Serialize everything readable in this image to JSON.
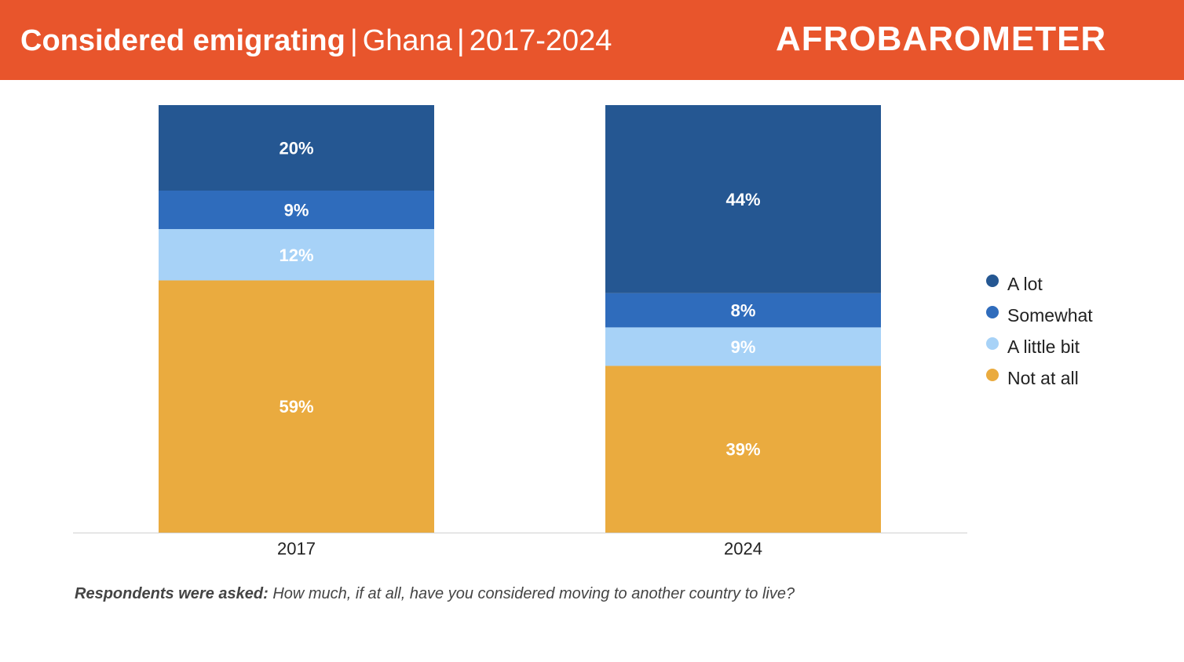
{
  "header": {
    "title_bold": "Considered emigrating",
    "separator1": "|",
    "country": "Ghana",
    "separator2": "|",
    "years": "2017-2024",
    "logo": "AFROBAROMETER",
    "background_color": "#e8552c"
  },
  "chart_data": {
    "type": "bar",
    "stacked": true,
    "categories": [
      "2017",
      "2024"
    ],
    "series": [
      {
        "name": "Not at all",
        "values": [
          59,
          39
        ],
        "labels": [
          "59%",
          "39%"
        ],
        "color": "#eaab3f"
      },
      {
        "name": "A little bit",
        "values": [
          12,
          9
        ],
        "labels": [
          "12%",
          "9%"
        ],
        "color": "#a7d2f7"
      },
      {
        "name": "Somewhat",
        "values": [
          9,
          8
        ],
        "labels": [
          "9%",
          "8%"
        ],
        "color": "#2f6cbc"
      },
      {
        "name": "A lot",
        "values": [
          20,
          44
        ],
        "labels": [
          "20%",
          "44%"
        ],
        "color": "#255792"
      }
    ],
    "ylim": [
      0,
      100
    ],
    "grid": false,
    "legend_position": "right"
  },
  "legend": {
    "items": [
      {
        "label": "A lot",
        "color": "#255792"
      },
      {
        "label": "Somewhat",
        "color": "#2f6cbc"
      },
      {
        "label": "A little bit",
        "color": "#a7d2f7"
      },
      {
        "label": "Not at all",
        "color": "#eaab3f"
      }
    ]
  },
  "note": {
    "lead": "Respondents were asked:",
    "question": "How much, if at all, have you considered moving to another country to live?"
  }
}
